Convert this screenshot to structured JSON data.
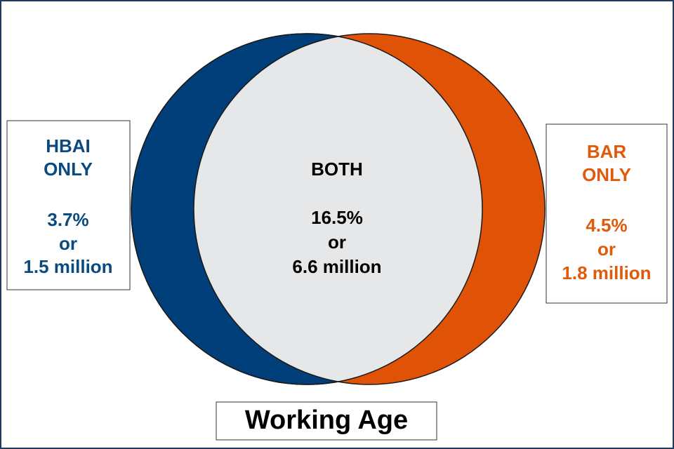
{
  "title": "Working Age",
  "regions": [
    {
      "label": [
        "HBAI",
        "ONLY"
      ],
      "share": "3.7%",
      "joiner": "or",
      "count": "1.5 million"
    },
    {
      "label": [
        "BOTH"
      ],
      "share": "16.5%",
      "joiner": "or",
      "count": "6.6 million"
    },
    {
      "label": [
        "BAR",
        "ONLY"
      ],
      "share": "4.5%",
      "joiner": "or",
      "count": "1.8 million"
    }
  ]
}
